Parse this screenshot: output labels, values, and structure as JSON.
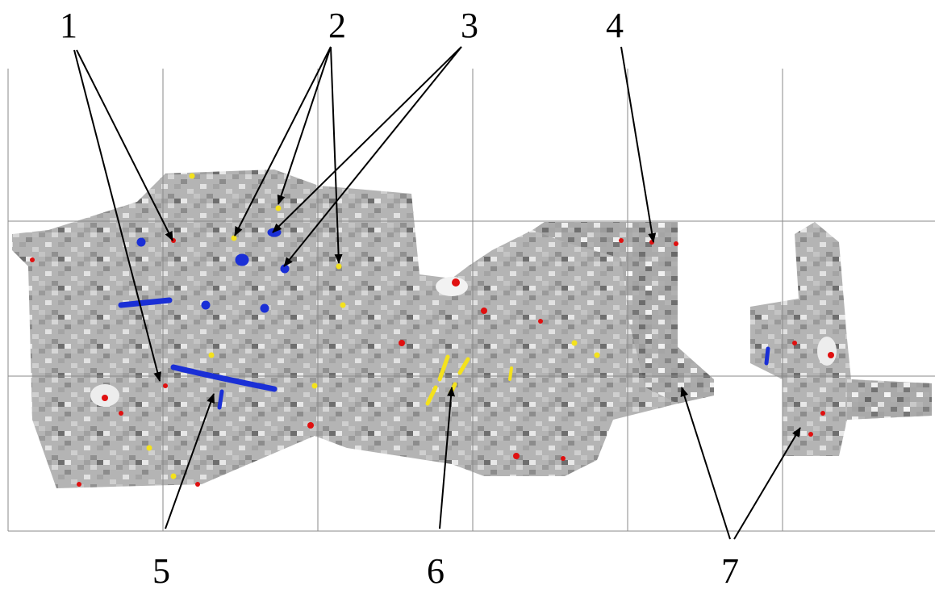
{
  "labels": [
    "1",
    "2",
    "3",
    "4",
    "5",
    "6",
    "7"
  ]
}
